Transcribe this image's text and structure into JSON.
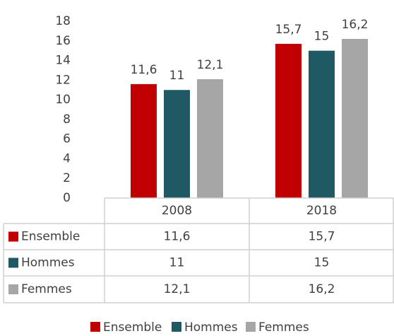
{
  "chart_data": {
    "type": "bar",
    "categories": [
      "2008",
      "2018"
    ],
    "series": [
      {
        "name": "Ensemble",
        "color": "#c00000",
        "values": [
          11.6,
          15.7
        ],
        "value_labels": [
          "11,6",
          "15,7"
        ]
      },
      {
        "name": "Hommes",
        "color": "#1f5964",
        "values": [
          11,
          15
        ]
      },
      {
        "name": "Femmes",
        "color": "#a6a6a6",
        "values": [
          12.1,
          16.2
        ],
        "value_labels": [
          "12,1",
          "16,2"
        ]
      }
    ],
    "ylim": [
      0,
      18
    ],
    "yticks": [
      0,
      2,
      4,
      6,
      8,
      10,
      12,
      14,
      16,
      18
    ],
    "grid": false,
    "legend": "bottom",
    "data_table": true
  }
}
